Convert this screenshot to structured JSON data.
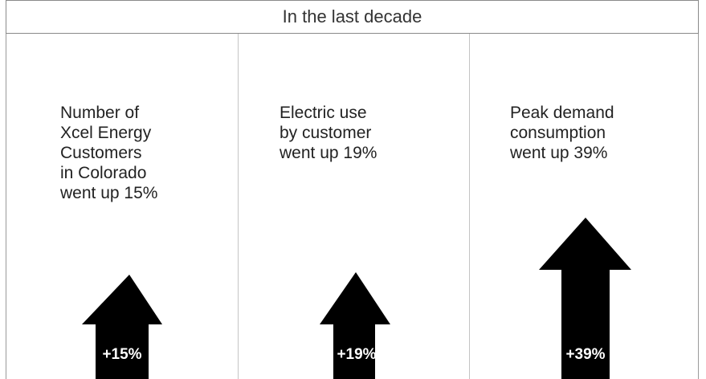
{
  "header": {
    "title": "In the last decade"
  },
  "panels": [
    {
      "lines": [
        "Number of",
        "Xcel Energy",
        "Customers",
        "in Colorado",
        "went up 15%"
      ],
      "arrow_label": "+15%",
      "increase_percent": 15
    },
    {
      "lines": [
        "Electric use",
        "by customer",
        "went up 19%"
      ],
      "arrow_label": "+19%",
      "increase_percent": 19
    },
    {
      "lines": [
        "Peak demand",
        "consumption",
        "went up 39%"
      ],
      "arrow_label": "+39%",
      "increase_percent": 39
    }
  ],
  "colors": {
    "arrow": "#000000",
    "arrow_text": "#ffffff",
    "border": "#9a9a9a"
  },
  "icons": {
    "arrow": "up-arrow-icon"
  }
}
